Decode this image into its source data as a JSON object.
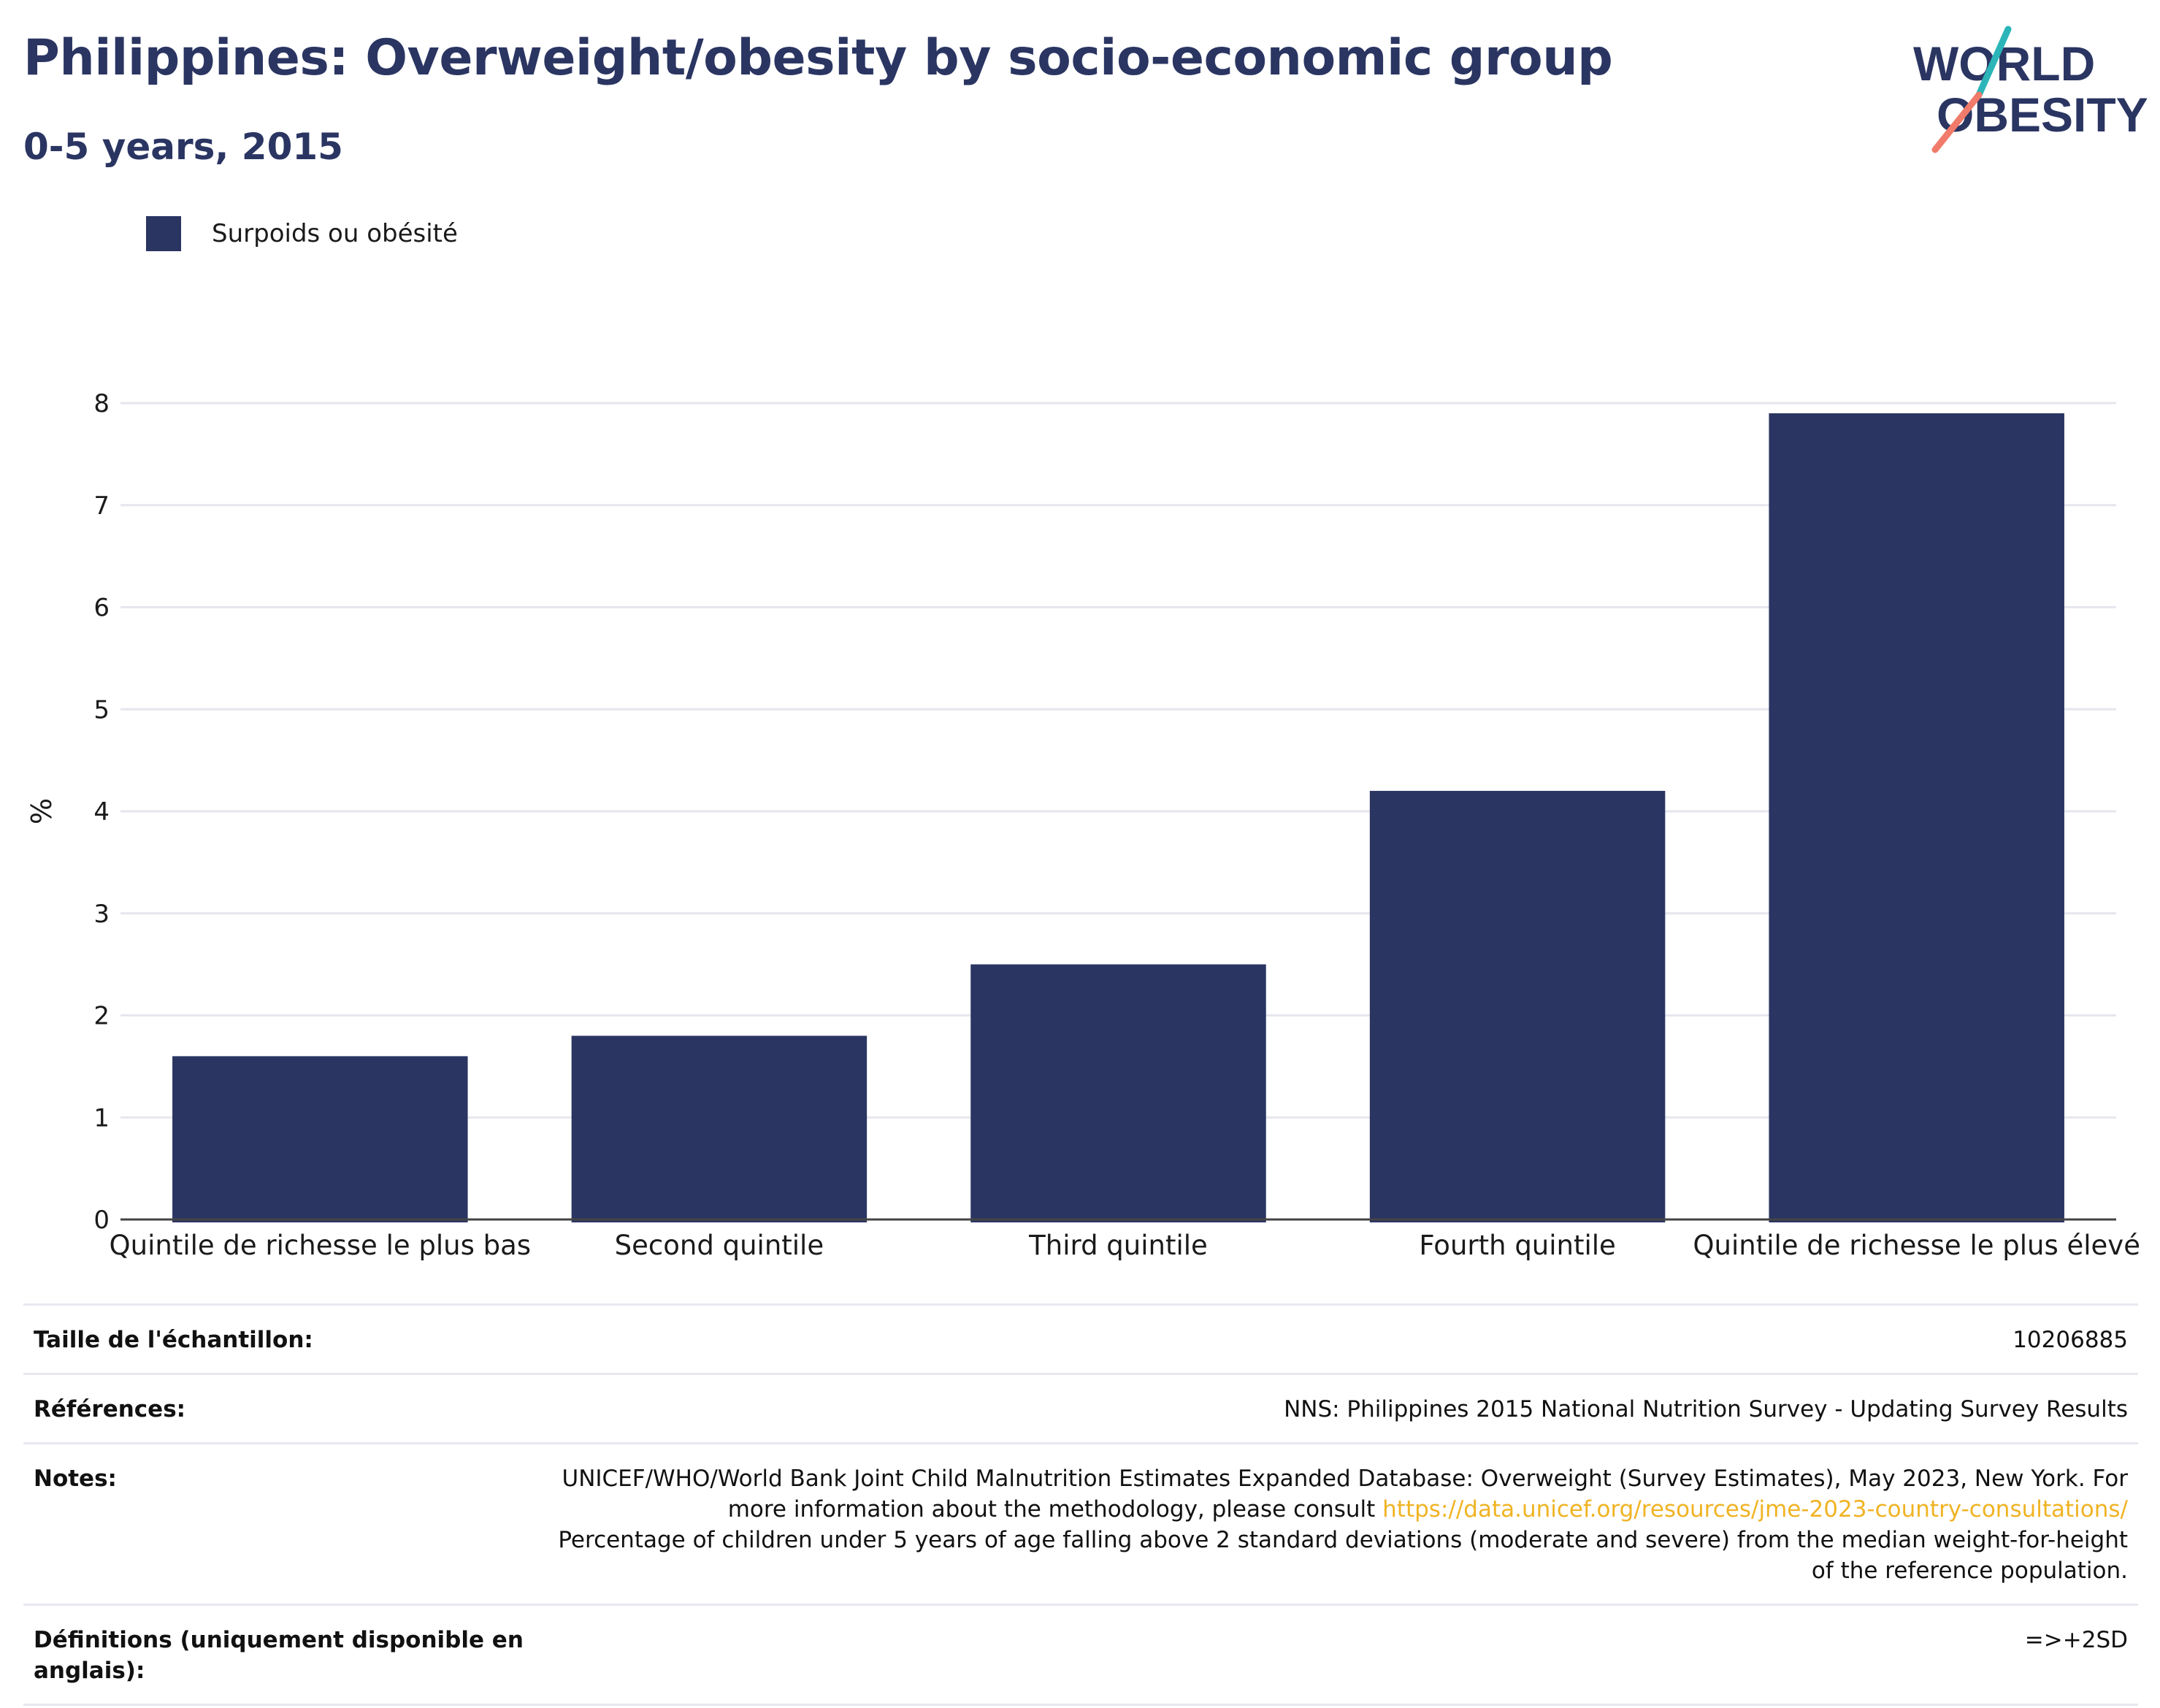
{
  "header": {
    "title": "Philippines: Overweight/obesity by socio-economic group",
    "subtitle": "0-5 years, 2015"
  },
  "logo": {
    "line1": "WORLD",
    "line2": "OBESITY"
  },
  "colors": {
    "bar": "#2a3562",
    "accent_teal": "#2bb5b8",
    "accent_coral": "#f07b6a",
    "link": "#f0b323"
  },
  "chart_data": {
    "type": "bar",
    "categories": [
      "Quintile de richesse le plus bas",
      "Second quintile",
      "Third quintile",
      "Fourth quintile",
      "Quintile de richesse le plus élevé"
    ],
    "series": [
      {
        "name": "Surpoids ou obésité",
        "values": [
          1.6,
          1.8,
          2.5,
          4.2,
          7.9
        ]
      }
    ],
    "ylabel": "%",
    "ylim": [
      0,
      8
    ],
    "yticks": [
      0,
      1,
      2,
      3,
      4,
      5,
      6,
      7,
      8
    ],
    "grid": true,
    "legend": "top-left"
  },
  "info": {
    "sample_label": "Taille de l'échantillon:",
    "sample_value": "10206885",
    "refs_label": "Références:",
    "refs_value": "NNS: Philippines 2015 National Nutrition Survey - Updating Survey Results",
    "notes_label": "Notes:",
    "notes_text1": "UNICEF/WHO/World Bank Joint Child Malnutrition Estimates Expanded Database: Overweight (Survey Estimates), May 2023, New York. For more information about the methodology, please consult ",
    "notes_link": "https://data.unicef.org/resources/jme-2023-country-consultations/",
    "notes_text2": "Percentage of children under 5 years of age falling above 2 standard deviations (moderate and severe) from the median weight-for-height of the reference population.",
    "defs_label": "Définitions (uniquement disponible en anglais):",
    "defs_value": "=>+2SD"
  }
}
